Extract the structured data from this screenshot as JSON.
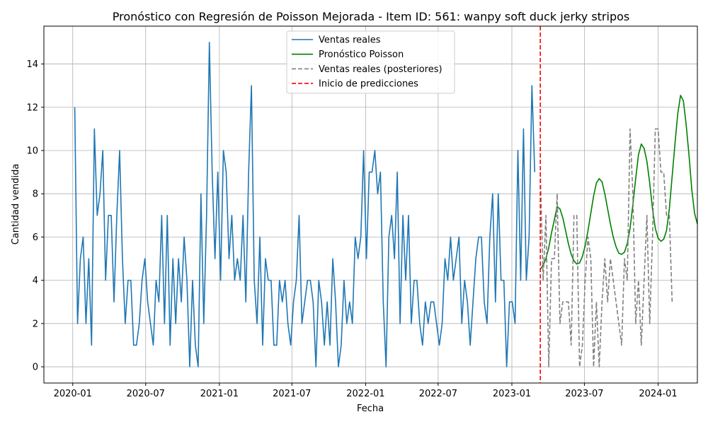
{
  "chart_data": {
    "type": "line",
    "title": "Pronóstico con Regresión de Poisson Mejorada - Item ID: 561: wanpy soft duck jerky stripos",
    "xlabel": "Fecha",
    "ylabel": "Cantidad vendida",
    "x_axis_type": "date",
    "xlim": [
      "2019-10-21",
      "2024-04-08"
    ],
    "ylim": [
      -0.75,
      15.75
    ],
    "x_ticks": [
      "2020-01",
      "2020-07",
      "2021-01",
      "2021-07",
      "2022-01",
      "2022-07",
      "2023-01",
      "2023-07",
      "2024-01"
    ],
    "y_ticks": [
      0,
      2,
      4,
      6,
      8,
      10,
      12,
      14
    ],
    "grid": true,
    "legend_position": "top-center",
    "prediction_start": "2023-03-13",
    "series": [
      {
        "name": "Ventas reales",
        "color": "#1f77b4",
        "style": "solid",
        "start": "2020-01-06",
        "interval_days": 7,
        "values": [
          12,
          2,
          5,
          6,
          2,
          5,
          1,
          11,
          7,
          8,
          10,
          4,
          7,
          7,
          3,
          7,
          10,
          5,
          2,
          4,
          4,
          1,
          1,
          2,
          4,
          5,
          3,
          2,
          1,
          4,
          3,
          7,
          2,
          7,
          1,
          5,
          2,
          5,
          3,
          6,
          4,
          0,
          4,
          1,
          0,
          8,
          2,
          7,
          15,
          9,
          5,
          9,
          4,
          10,
          9,
          5,
          7,
          4,
          5,
          4,
          7,
          3,
          9,
          13,
          4,
          2,
          6,
          1,
          5,
          4,
          4,
          1,
          1,
          4,
          3,
          4,
          2,
          1,
          3,
          4,
          7,
          2,
          3,
          4,
          4,
          3,
          0,
          4,
          3,
          1,
          3,
          1,
          5,
          3,
          0,
          1,
          4,
          2,
          3,
          2,
          6,
          5,
          6,
          10,
          5,
          9,
          9,
          10,
          8,
          9,
          3,
          0,
          6,
          7,
          5,
          9,
          2,
          7,
          4,
          7,
          2,
          4,
          4,
          2,
          1,
          3,
          2,
          3,
          3,
          2,
          1,
          2,
          5,
          4,
          6,
          4,
          5,
          6,
          2,
          4,
          3,
          1,
          3,
          5,
          6,
          6,
          3,
          2,
          6,
          8,
          3,
          8,
          4,
          4,
          0,
          3,
          3,
          2,
          10,
          4,
          11,
          4,
          6,
          13,
          9
        ]
      },
      {
        "name": "Pronóstico Poisson",
        "color": "#008000",
        "style": "solid",
        "start": "2023-03-13",
        "interval_days": 7,
        "values": [
          4.5,
          4.7,
          5.0,
          5.5,
          6.2,
          6.8,
          7.4,
          7.3,
          6.9,
          6.3,
          5.7,
          5.2,
          4.9,
          4.75,
          4.8,
          5.1,
          5.6,
          6.3,
          7.1,
          7.9,
          8.5,
          8.7,
          8.55,
          8.0,
          7.3,
          6.6,
          6.0,
          5.55,
          5.25,
          5.2,
          5.3,
          5.7,
          6.4,
          7.5,
          8.7,
          9.8,
          10.3,
          10.1,
          9.5,
          8.5,
          7.3,
          6.4,
          5.95,
          5.8,
          5.9,
          6.3,
          7.3,
          8.8,
          10.3,
          11.7,
          12.55,
          12.3,
          11.2,
          9.8,
          8.2,
          7.1,
          6.6
        ]
      },
      {
        "name": "Ventas reales (posteriores)",
        "color": "#808080",
        "style": "dashed",
        "start": "2023-03-13",
        "interval_days": 7,
        "values": [
          9,
          4,
          7,
          0,
          5,
          5,
          8,
          2,
          3,
          3,
          3,
          1,
          7,
          7,
          0,
          1,
          4,
          6,
          5,
          0,
          3,
          0,
          3,
          5,
          3,
          5,
          4,
          3,
          2,
          1,
          5,
          4,
          11,
          8,
          2,
          4,
          1,
          4,
          7,
          2,
          6,
          11,
          11,
          9,
          9,
          7,
          7,
          3
        ]
      },
      {
        "name": "Inicio de predicciones",
        "color": "#ff0000",
        "style": "dashed-vertical"
      }
    ]
  }
}
